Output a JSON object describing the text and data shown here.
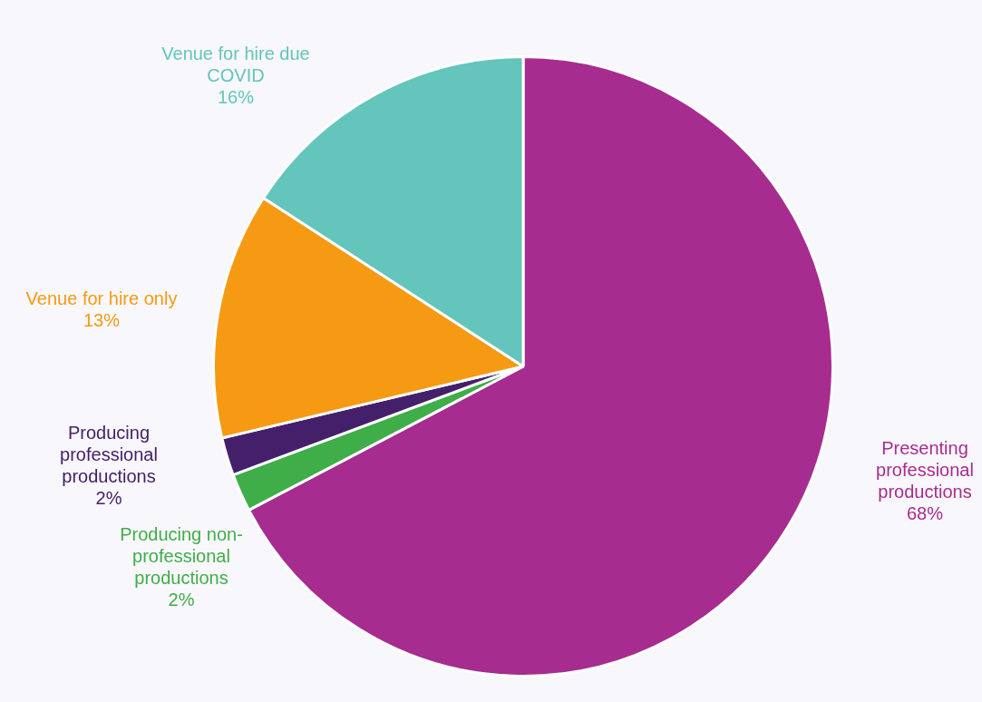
{
  "chart_data": {
    "type": "pie",
    "categories": [
      "Presenting professional productions",
      "Producing non-professional productions",
      "Producing professional productions",
      "Venue for hire only",
      "Venue for hire due COVID"
    ],
    "values": [
      68,
      2,
      2,
      13,
      16
    ],
    "colors": [
      "#a72c8f",
      "#3fae49",
      "#45206a",
      "#f59a12",
      "#63c5bc"
    ],
    "value_labels": [
      "68%",
      "2%",
      "2%",
      "13%",
      "16%"
    ],
    "legend": false
  }
}
